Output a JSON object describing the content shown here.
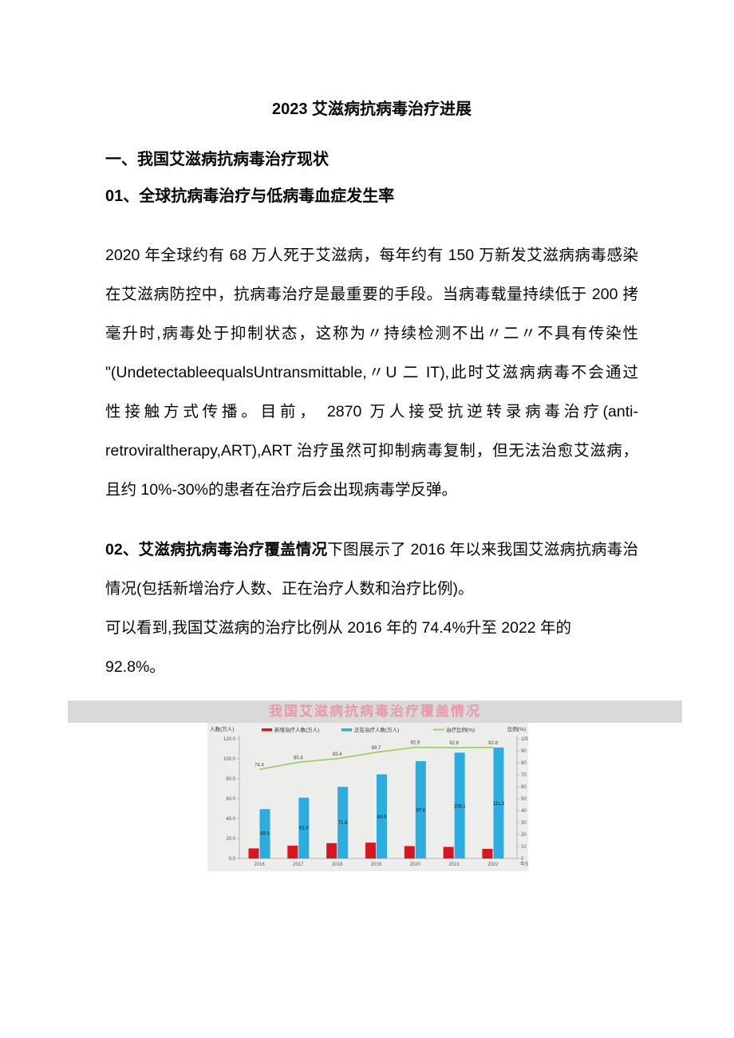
{
  "document": {
    "title": "2023 艾滋病抗病毒治疗进展",
    "section1_heading": "一、我国艾滋病抗病毒治疗现状",
    "subsection1_heading": "01、全球抗病毒治疗与低病毒血症发生率",
    "paragraph1": [
      "2020 年全球约有 68 万人死于艾滋病，每年约有 150 万新发艾滋病病毒感染者。",
      "在艾滋病防控中，抗病毒治疗是最重要的手段。当病毒载量持续低于 200 拷贝/",
      "毫升时,病毒处于抑制状态，这称为〃持续检测不出〃二〃不具有传染性",
      "\"(UndetectableequalsUntransmittable,〃U 二 IT),此时艾滋病病毒不会通过",
      "性接触方式传播。目前， 2870 万人接受抗逆转录病毒治疗(anti-",
      "retroviraltherapy,ART),ART 治疗虽然可抑制病毒复制，但无法治愈艾滋病，并",
      "且约 10%-30%的患者在治疗后会出现病毒学反弹。"
    ],
    "subsection2_heading_bold": "02、艾滋病抗病毒治疗覆盖情况",
    "paragraph2_intro": "下图展示了 2016 年以来我国艾滋病抗病毒治疗",
    "paragraph2": [
      "情况(包括新增治疗人数、正在治疗人数和治疗比例)。",
      "可以看到,我国艾滋病的治疗比例从 2016 年的 74.4%升至 2022 年的",
      "92.8%。"
    ]
  },
  "chart_data": {
    "type": "bar",
    "title": "我国艾滋病抗病毒治疗覆盖情况",
    "categories": [
      "2016",
      "2017",
      "2018",
      "2019",
      "2020",
      "2021",
      "2022"
    ],
    "series": [
      {
        "name": "新增治疗人数(万人)",
        "kind": "bar",
        "axis": "left",
        "color": "#d9151f",
        "values": [
          10.1,
          12.9,
          15.4,
          15.9,
          12.4,
          11.6,
          9.6
        ],
        "show_labels": false
      },
      {
        "name": "正在治疗人数(万人)",
        "kind": "bar",
        "axis": "left",
        "color": "#2cacdf",
        "values": [
          49.5,
          61.0,
          71.8,
          84.4,
          97.6,
          106.1,
          111.3
        ],
        "show_labels": true
      },
      {
        "name": "治疗比例(%)",
        "kind": "line",
        "axis": "right",
        "color": "#9ed164",
        "values": [
          74.4,
          80.4,
          83.4,
          88.7,
          92.9,
          92.6,
          92.8
        ],
        "show_labels": true
      }
    ],
    "ylabel_left": "人数(万人)",
    "ylabel_right": "比例(%)",
    "xlabel": "年份",
    "ylim_left": [
      0,
      120
    ],
    "ylim_right": [
      0,
      100
    ],
    "left_ticks": [
      "120.0",
      "100.0",
      "80.0",
      "60.0",
      "40.0",
      "20.0",
      "0.0"
    ],
    "right_ticks": [
      "100",
      "90",
      "80",
      "70",
      "60",
      "50",
      "40",
      "30",
      "20",
      "10",
      "0"
    ],
    "legend_position": "top",
    "grid": false
  }
}
